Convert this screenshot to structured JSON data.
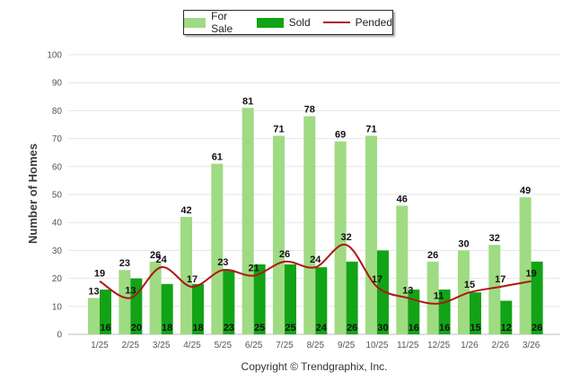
{
  "chart_data": {
    "type": "bar",
    "title": "",
    "xlabel": "",
    "ylabel": "Number of Homes",
    "ylim": [
      0,
      100
    ],
    "yticks": [
      0,
      10,
      20,
      30,
      40,
      50,
      60,
      70,
      80,
      90,
      100
    ],
    "categories": [
      "1/25",
      "2/25",
      "3/25",
      "4/25",
      "5/25",
      "6/25",
      "7/25",
      "8/25",
      "9/25",
      "10/25",
      "11/25",
      "12/25",
      "1/26",
      "2/26",
      "3/26"
    ],
    "series": [
      {
        "name": "For Sale",
        "kind": "bar",
        "color": "#9fdb82",
        "values": [
          13,
          23,
          26,
          42,
          61,
          81,
          71,
          78,
          69,
          71,
          46,
          26,
          30,
          32,
          49
        ]
      },
      {
        "name": "Sold",
        "kind": "bar",
        "color": "#12a316",
        "values": [
          16,
          20,
          18,
          18,
          23,
          25,
          25,
          24,
          26,
          30,
          16,
          16,
          15,
          12,
          26
        ]
      },
      {
        "name": "Pended",
        "kind": "line",
        "color": "#b01515",
        "values": [
          19,
          13,
          24,
          17,
          23,
          21,
          26,
          24,
          32,
          17,
          13,
          11,
          15,
          17,
          19
        ]
      }
    ],
    "grid": true,
    "legend_position": "top-center"
  },
  "footer": {
    "copyright": "Copyright © Trendgraphix, Inc."
  }
}
